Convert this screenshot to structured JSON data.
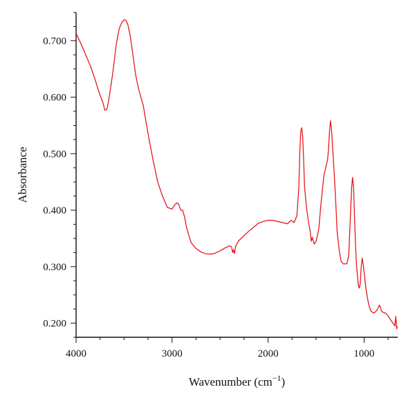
{
  "chart_data": {
    "type": "line",
    "title": "",
    "xlabel": "Wavenumber (cm",
    "xlabel_sup": "−1",
    "xlabel_suffix": ")",
    "ylabel": "Absorbance",
    "xlim": [
      4000,
      650
    ],
    "x_reversed": true,
    "ylim": [
      0.175,
      0.75
    ],
    "x_ticks": [
      4000,
      3000,
      2000,
      1000
    ],
    "x_tick_labels": [
      "4000",
      "3000",
      "2000",
      "1000"
    ],
    "y_ticks": [
      0.2,
      0.3,
      0.4,
      0.5,
      0.6,
      0.7
    ],
    "y_tick_labels": [
      "0.200",
      "0.300",
      "0.400",
      "0.500",
      "0.600",
      "0.700"
    ],
    "grid": false,
    "legend": "none",
    "series": [
      {
        "color": "#e8151b",
        "x": [
          4000,
          3950,
          3900,
          3850,
          3800,
          3760,
          3720,
          3700,
          3680,
          3660,
          3620,
          3580,
          3550,
          3520,
          3500,
          3480,
          3460,
          3440,
          3420,
          3400,
          3380,
          3350,
          3300,
          3250,
          3200,
          3150,
          3100,
          3050,
          3000,
          2970,
          2950,
          2930,
          2910,
          2890,
          2870,
          2850,
          2820,
          2800,
          2750,
          2700,
          2650,
          2600,
          2550,
          2500,
          2450,
          2400,
          2380,
          2370,
          2360,
          2350,
          2340,
          2320,
          2300,
          2250,
          2200,
          2150,
          2100,
          2050,
          2000,
          1950,
          1900,
          1850,
          1800,
          1760,
          1730,
          1700,
          1680,
          1670,
          1660,
          1650,
          1640,
          1630,
          1620,
          1600,
          1580,
          1560,
          1550,
          1540,
          1520,
          1500,
          1480,
          1470,
          1450,
          1420,
          1400,
          1380,
          1370,
          1360,
          1350,
          1340,
          1320,
          1300,
          1280,
          1260,
          1250,
          1240,
          1220,
          1200,
          1180,
          1160,
          1150,
          1140,
          1130,
          1120,
          1110,
          1100,
          1090,
          1080,
          1070,
          1060,
          1050,
          1040,
          1030,
          1020,
          1010,
          1000,
          990,
          980,
          970,
          960,
          950,
          940,
          930,
          920,
          900,
          880,
          860,
          840,
          830,
          820,
          810,
          800,
          780,
          760,
          740,
          720,
          700,
          690,
          680,
          670,
          660,
          655
        ],
        "y": [
          0.713,
          0.695,
          0.675,
          0.655,
          0.63,
          0.608,
          0.59,
          0.577,
          0.578,
          0.595,
          0.64,
          0.695,
          0.722,
          0.733,
          0.737,
          0.736,
          0.728,
          0.712,
          0.69,
          0.665,
          0.64,
          0.615,
          0.585,
          0.535,
          0.49,
          0.45,
          0.425,
          0.405,
          0.402,
          0.41,
          0.413,
          0.41,
          0.4,
          0.4,
          0.388,
          0.37,
          0.352,
          0.342,
          0.332,
          0.326,
          0.323,
          0.322,
          0.324,
          0.328,
          0.333,
          0.337,
          0.335,
          0.325,
          0.33,
          0.323,
          0.335,
          0.342,
          0.347,
          0.355,
          0.363,
          0.37,
          0.377,
          0.38,
          0.382,
          0.382,
          0.38,
          0.378,
          0.376,
          0.382,
          0.378,
          0.39,
          0.44,
          0.5,
          0.54,
          0.546,
          0.53,
          0.49,
          0.44,
          0.405,
          0.38,
          0.36,
          0.345,
          0.352,
          0.34,
          0.345,
          0.36,
          0.37,
          0.41,
          0.46,
          0.475,
          0.49,
          0.51,
          0.54,
          0.558,
          0.545,
          0.49,
          0.43,
          0.36,
          0.33,
          0.32,
          0.31,
          0.305,
          0.305,
          0.305,
          0.32,
          0.36,
          0.4,
          0.44,
          0.458,
          0.44,
          0.39,
          0.34,
          0.305,
          0.285,
          0.268,
          0.262,
          0.27,
          0.3,
          0.315,
          0.305,
          0.29,
          0.275,
          0.26,
          0.25,
          0.24,
          0.232,
          0.226,
          0.222,
          0.22,
          0.218,
          0.22,
          0.225,
          0.232,
          0.228,
          0.222,
          0.22,
          0.219,
          0.218,
          0.215,
          0.21,
          0.205,
          0.2,
          0.198,
          0.195,
          0.212,
          0.19,
          0.195
        ]
      }
    ]
  }
}
